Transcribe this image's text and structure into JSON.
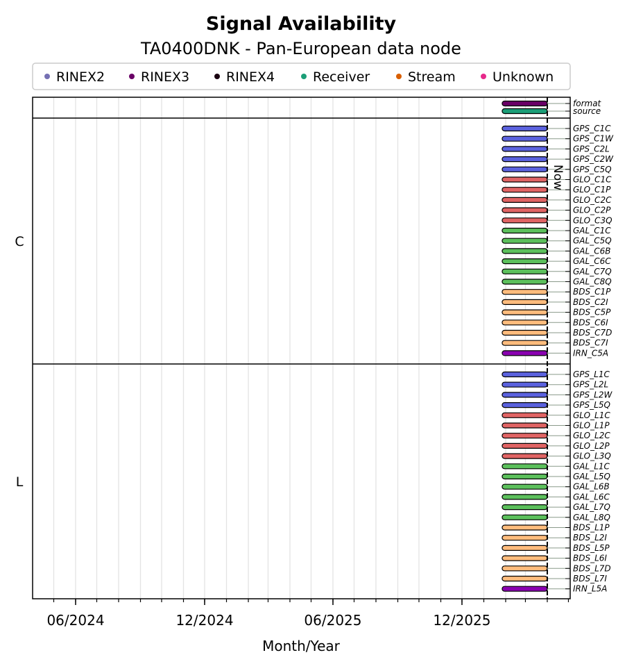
{
  "chart_data": {
    "type": "timeline",
    "title": "Signal Availability",
    "subtitle": "TA0400DNK - Pan-European data node",
    "xlabel": "Month/Year",
    "x_ticks": [
      "06/2024",
      "12/2024",
      "06/2025",
      "12/2025"
    ],
    "now_label": "Now",
    "legend": [
      {
        "name": "RINEX2",
        "color": "#7570b3"
      },
      {
        "name": "RINEX3",
        "color": "#6a0066"
      },
      {
        "name": "RINEX4",
        "color": "#1a0010"
      },
      {
        "name": "Receiver",
        "color": "#1b9e77"
      },
      {
        "name": "Stream",
        "color": "#d95f02"
      },
      {
        "name": "Unknown",
        "color": "#e7298a"
      }
    ],
    "constellation_colors": {
      "GPS": "#5b62de",
      "GLO": "#e06464",
      "GAL": "#5cc05c",
      "BDS": "#ffbc7d",
      "IRN": "#8a00b0"
    },
    "top_rows": [
      {
        "name": "format",
        "color": "#6a0066"
      },
      {
        "name": "source",
        "color": "#1b9e77"
      }
    ],
    "groups": [
      {
        "label": "C",
        "signals": [
          "GPS_C1C",
          "GPS_C1W",
          "GPS_C2L",
          "GPS_C2W",
          "GPS_C5Q",
          "GLO_C1C",
          "GLO_C1P",
          "GLO_C2C",
          "GLO_C2P",
          "GLO_C3Q",
          "GAL_C1C",
          "GAL_C5Q",
          "GAL_C6B",
          "GAL_C6C",
          "GAL_C7Q",
          "GAL_C8Q",
          "BDS_C1P",
          "BDS_C2I",
          "BDS_C5P",
          "BDS_C6I",
          "BDS_C7D",
          "BDS_C7I",
          "IRN_C5A"
        ]
      },
      {
        "label": "L",
        "signals": [
          "GPS_L1C",
          "GPS_L2L",
          "GPS_L2W",
          "GPS_L5Q",
          "GLO_L1C",
          "GLO_L1P",
          "GLO_L2C",
          "GLO_L2P",
          "GLO_L3Q",
          "GAL_L1C",
          "GAL_L5Q",
          "GAL_L6B",
          "GAL_L6C",
          "GAL_L7Q",
          "GAL_L8Q",
          "BDS_L1P",
          "BDS_L2I",
          "BDS_L5P",
          "BDS_L6I",
          "BDS_L7D",
          "BDS_L7I",
          "IRN_L5A"
        ]
      }
    ],
    "availability": {
      "start": "2026-01-27",
      "end": "2026-04-01"
    }
  }
}
